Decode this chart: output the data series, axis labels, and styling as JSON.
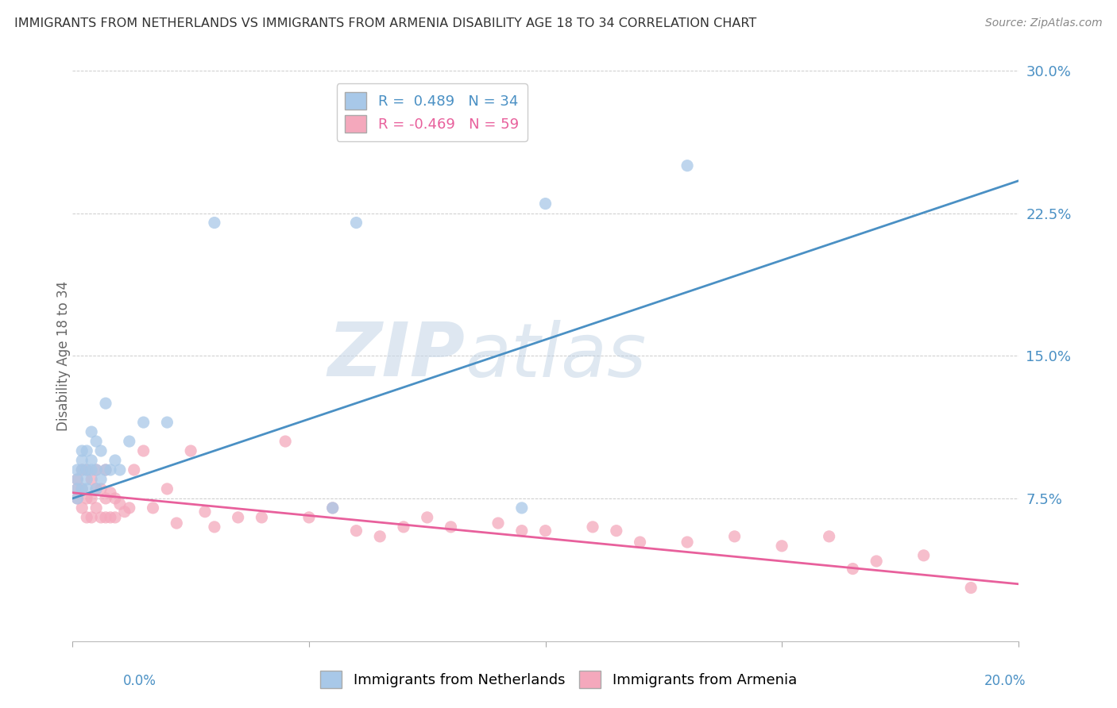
{
  "title": "IMMIGRANTS FROM NETHERLANDS VS IMMIGRANTS FROM ARMENIA DISABILITY AGE 18 TO 34 CORRELATION CHART",
  "source": "Source: ZipAtlas.com",
  "ylabel": "Disability Age 18 to 34",
  "watermark_zip": "ZIP",
  "watermark_atlas": "atlas",
  "blue_R": 0.489,
  "blue_N": 34,
  "pink_R": -0.469,
  "pink_N": 59,
  "blue_color": "#a8c8e8",
  "pink_color": "#f4a8bc",
  "blue_line_color": "#4a90c4",
  "pink_line_color": "#e8609c",
  "blue_label": "Immigrants from Netherlands",
  "pink_label": "Immigrants from Armenia",
  "xlim": [
    0.0,
    0.2
  ],
  "ylim": [
    0.0,
    0.3
  ],
  "yticks": [
    0.075,
    0.15,
    0.225,
    0.3
  ],
  "ytick_labels": [
    "7.5%",
    "15.0%",
    "22.5%",
    "30.0%"
  ],
  "blue_line_x0": 0.0,
  "blue_line_y0": 0.075,
  "blue_line_x1": 0.2,
  "blue_line_y1": 0.242,
  "pink_line_x0": 0.0,
  "pink_line_y0": 0.078,
  "pink_line_x1": 0.2,
  "pink_line_y1": 0.03,
  "blue_scatter_x": [
    0.001,
    0.001,
    0.001,
    0.001,
    0.002,
    0.002,
    0.002,
    0.002,
    0.003,
    0.003,
    0.003,
    0.003,
    0.004,
    0.004,
    0.004,
    0.005,
    0.005,
    0.005,
    0.006,
    0.006,
    0.007,
    0.007,
    0.008,
    0.009,
    0.01,
    0.012,
    0.015,
    0.02,
    0.03,
    0.055,
    0.06,
    0.095,
    0.1,
    0.13
  ],
  "blue_scatter_y": [
    0.075,
    0.08,
    0.085,
    0.09,
    0.08,
    0.09,
    0.095,
    0.1,
    0.08,
    0.085,
    0.09,
    0.1,
    0.09,
    0.095,
    0.11,
    0.08,
    0.09,
    0.105,
    0.085,
    0.1,
    0.09,
    0.125,
    0.09,
    0.095,
    0.09,
    0.105,
    0.115,
    0.115,
    0.22,
    0.07,
    0.22,
    0.07,
    0.23,
    0.25
  ],
  "pink_scatter_x": [
    0.001,
    0.001,
    0.001,
    0.002,
    0.002,
    0.002,
    0.003,
    0.003,
    0.003,
    0.004,
    0.004,
    0.004,
    0.005,
    0.005,
    0.005,
    0.006,
    0.006,
    0.007,
    0.007,
    0.007,
    0.008,
    0.008,
    0.009,
    0.009,
    0.01,
    0.011,
    0.012,
    0.013,
    0.015,
    0.017,
    0.02,
    0.022,
    0.025,
    0.028,
    0.03,
    0.035,
    0.04,
    0.045,
    0.05,
    0.055,
    0.06,
    0.065,
    0.07,
    0.075,
    0.08,
    0.09,
    0.095,
    0.1,
    0.11,
    0.115,
    0.12,
    0.13,
    0.14,
    0.15,
    0.16,
    0.165,
    0.17,
    0.18,
    0.19
  ],
  "pink_scatter_y": [
    0.075,
    0.08,
    0.085,
    0.07,
    0.08,
    0.09,
    0.065,
    0.075,
    0.09,
    0.065,
    0.075,
    0.085,
    0.07,
    0.08,
    0.09,
    0.065,
    0.08,
    0.065,
    0.075,
    0.09,
    0.065,
    0.078,
    0.065,
    0.075,
    0.072,
    0.068,
    0.07,
    0.09,
    0.1,
    0.07,
    0.08,
    0.062,
    0.1,
    0.068,
    0.06,
    0.065,
    0.065,
    0.105,
    0.065,
    0.07,
    0.058,
    0.055,
    0.06,
    0.065,
    0.06,
    0.062,
    0.058,
    0.058,
    0.06,
    0.058,
    0.052,
    0.052,
    0.055,
    0.05,
    0.055,
    0.038,
    0.042,
    0.045,
    0.028
  ],
  "background_color": "#ffffff",
  "grid_color": "#cccccc",
  "title_color": "#333333",
  "axis_label_color": "#666666",
  "tick_color_blue": "#4a90c4"
}
